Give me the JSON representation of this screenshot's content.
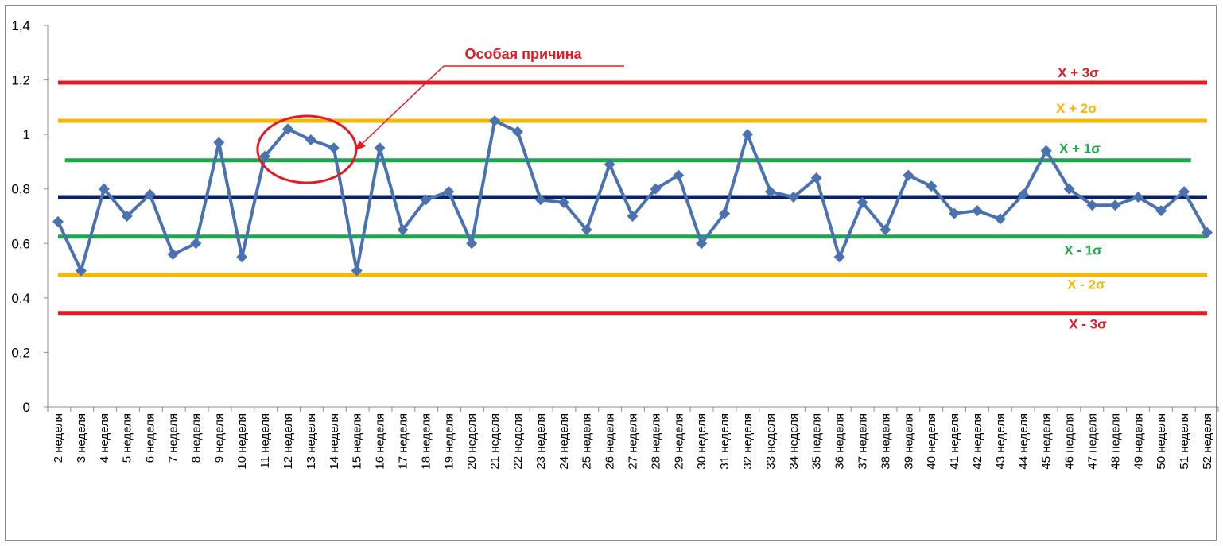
{
  "chart_data": {
    "type": "line",
    "title": "",
    "xlabel": "",
    "ylabel": "",
    "ylim": [
      0,
      1.4
    ],
    "yticks": [
      {
        "value": 0,
        "label": "0"
      },
      {
        "value": 0.2,
        "label": "0,2"
      },
      {
        "value": 0.4,
        "label": "0,4"
      },
      {
        "value": 0.6,
        "label": "0,6"
      },
      {
        "value": 0.8,
        "label": "0,8"
      },
      {
        "value": 1,
        "label": "1"
      },
      {
        "value": 1.2,
        "label": "1,2"
      },
      {
        "value": 1.4,
        "label": "1,4"
      }
    ],
    "grid": false,
    "legend": "none",
    "categories": [
      "2 неделя",
      "3 неделя",
      "4 неделя",
      "5 неделя",
      "6 неделя",
      "7 неделя",
      "8 неделя",
      "9 неделя",
      "10 неделя",
      "11 неделя",
      "12 неделя",
      "13 неделя",
      "14 неделя",
      "15 неделя",
      "16 неделя",
      "17 неделя",
      "18 неделя",
      "19 неделя",
      "20 неделя",
      "21 неделя",
      "22 неделя",
      "23 неделя",
      "24 неделя",
      "25 неделя",
      "26 неделя",
      "27 неделя",
      "28 неделя",
      "29 неделя",
      "30 неделя",
      "31 неделя",
      "32 неделя",
      "33 неделя",
      "34 неделя",
      "35 неделя",
      "36 неделя",
      "37 неделя",
      "38 неделя",
      "39 неделя",
      "40 неделя",
      "41 неделя",
      "42 неделя",
      "43 неделя",
      "44 неделя",
      "45 неделя",
      "46 неделя",
      "47 неделя",
      "48 неделя",
      "49 неделя",
      "50 неделя",
      "51 неделя",
      "52 неделя"
    ],
    "series": [
      {
        "color": "#4a72b0",
        "marker": "diamond",
        "values": [
          0.68,
          0.5,
          0.8,
          0.7,
          0.78,
          0.56,
          0.6,
          0.97,
          0.55,
          0.92,
          1.02,
          0.98,
          0.95,
          0.5,
          0.95,
          0.65,
          0.76,
          0.79,
          0.6,
          1.05,
          1.01,
          0.76,
          0.75,
          0.65,
          0.89,
          0.7,
          0.8,
          0.85,
          0.6,
          0.71,
          1.0,
          0.79,
          0.77,
          0.84,
          0.55,
          0.75,
          0.65,
          0.85,
          0.81,
          0.71,
          0.72,
          0.69,
          0.78,
          0.94,
          0.8,
          0.74,
          0.74,
          0.77,
          0.72,
          0.79,
          0.64
        ]
      }
    ],
    "control_lines": [
      {
        "label": "X + 3σ",
        "value": 1.19,
        "color": "#e31b23",
        "from_index": 0,
        "to_index": 50
      },
      {
        "label": "X + 2σ",
        "value": 1.05,
        "color": "#f5b800",
        "from_index": 0,
        "to_index": 50
      },
      {
        "label": "X + 1σ",
        "value": 0.905,
        "color": "#19a84a",
        "from_index": 0.3,
        "to_index": 49.3
      },
      {
        "label": "",
        "value": 0.77,
        "color": "#0b2160",
        "from_index": 0,
        "to_index": 50
      },
      {
        "label": "X - 1σ",
        "value": 0.625,
        "color": "#19a84a",
        "from_index": 0,
        "to_index": 50
      },
      {
        "label": "X - 2σ",
        "value": 0.485,
        "color": "#f5b800",
        "from_index": 0,
        "to_index": 50
      },
      {
        "label": "X - 3σ",
        "value": 0.345,
        "color": "#e31b23",
        "from_index": 0,
        "to_index": 50
      }
    ],
    "annotations": [
      {
        "text": "Особая причина",
        "color": "#e31b23",
        "target_center_index": 11,
        "target_value": 0.945
      }
    ]
  }
}
